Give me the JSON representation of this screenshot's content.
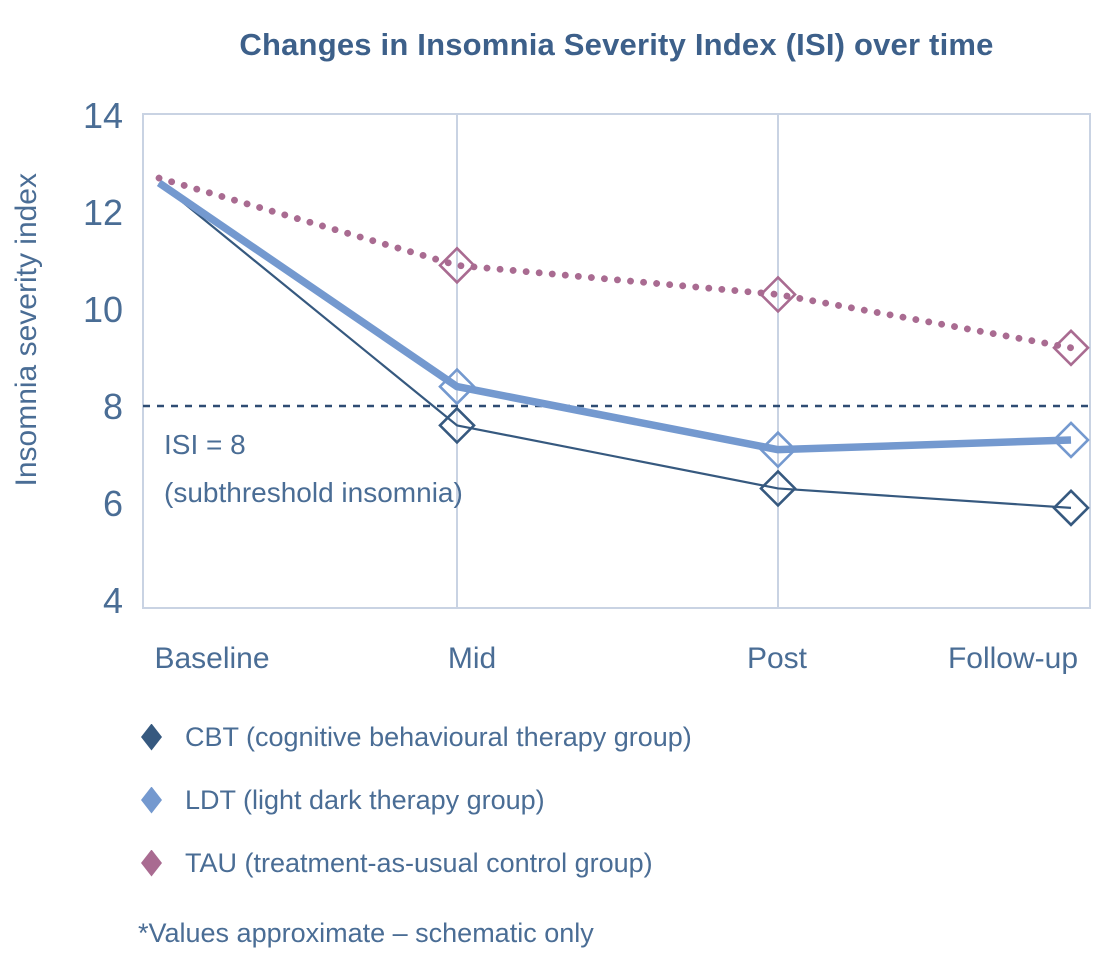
{
  "chart_data": {
    "type": "line",
    "title": "Changes in Insomnia Severity Index (ISI) over time",
    "ylabel": "Insomnia severity index",
    "categories": [
      "Baseline",
      "Mid",
      "Post",
      "Follow-up"
    ],
    "ylim": [
      4,
      14
    ],
    "yticks": [
      4,
      6,
      8,
      10,
      12,
      14
    ],
    "gridlines": {
      "vertical_at": [
        "Mid",
        "Post"
      ],
      "horizontal": "none"
    },
    "legend_position": "bottom-left",
    "series": [
      {
        "short": "CBT",
        "name": "CBT (cognitive behavioural therapy group)",
        "values": [
          12.6,
          7.6,
          6.3,
          5.9
        ],
        "color": "#36597f",
        "line_style": "solid-thin",
        "marker": "open-diamond"
      },
      {
        "short": "LDT",
        "name": "LDT (light dark therapy group)",
        "values": [
          12.6,
          8.4,
          7.1,
          7.3
        ],
        "color": "#7499cf",
        "line_style": "solid-thick",
        "marker": "open-diamond"
      },
      {
        "short": "TAU",
        "name": "TAU (treatment-as-usual control group)",
        "values": [
          12.7,
          10.9,
          10.3,
          9.2
        ],
        "color": "#a96b91",
        "line_style": "dotted",
        "marker": "open-diamond"
      }
    ],
    "threshold": {
      "value": 8,
      "style": "dashed",
      "color": "#2e4c73",
      "label_line1": "ISI = 8",
      "label_line2": "(subthreshold insomnia)"
    },
    "footnote": "*Values approximate – schematic only",
    "colors": {
      "title": "#3d608a",
      "text": "#4a6d95",
      "grid": "#c9d3e3"
    }
  }
}
